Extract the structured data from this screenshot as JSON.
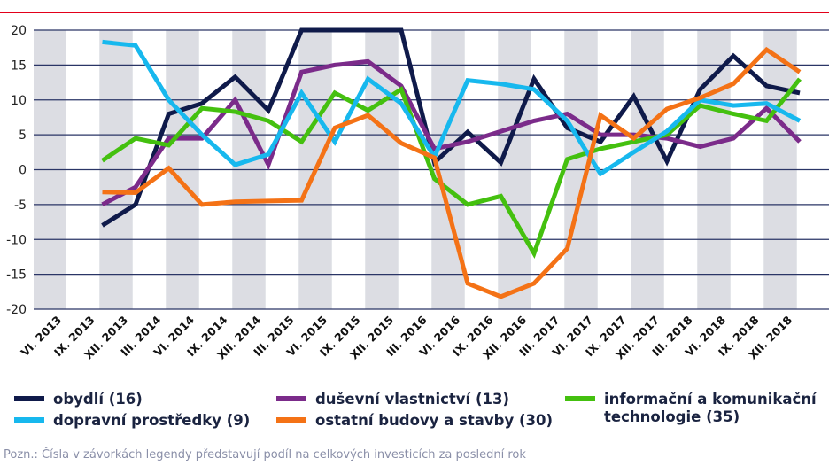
{
  "chart_data": {
    "type": "line",
    "categories": [
      "VI. 2013",
      "IX. 2013",
      "XII. 2013",
      "III. 2014",
      "VI. 2014",
      "IX. 2014",
      "XII. 2014",
      "III. 2015",
      "VI. 2015",
      "IX. 2015",
      "XII. 2015",
      "III. 2016",
      "VI. 2016",
      "IX. 2016",
      "XII. 2016",
      "III. 2017",
      "VI. 2017",
      "IX. 2017",
      "XII. 2017",
      "III. 2018",
      "VI. 2018",
      "IX. 2018",
      "XII. 2018"
    ],
    "yticks": [
      20,
      15,
      10,
      5,
      0,
      -5,
      -10,
      -15,
      -20
    ],
    "ylim": [
      -20,
      20
    ],
    "title": "",
    "xlabel": "",
    "ylabel": "",
    "series": [
      {
        "name": "obydlí (16)",
        "color": "#0f1a4a",
        "values": [
          null,
          -8,
          -5,
          8,
          9.5,
          13.3,
          8.5,
          20,
          20,
          20,
          20,
          1,
          5.4,
          1,
          13,
          6,
          4,
          10.5,
          1.2,
          11.5,
          16.3,
          12,
          11
        ]
      },
      {
        "name": "duševní vlastnictví (13)",
        "color": "#7b2b8a",
        "values": [
          null,
          -5,
          -2.5,
          4.5,
          4.5,
          10,
          0.7,
          14,
          15,
          15.5,
          12,
          3,
          4,
          5.5,
          7,
          8,
          5,
          5,
          4.5,
          3.3,
          4.5,
          8.8,
          4
        ]
      },
      {
        "name": "informační a komunikační technologie (35)",
        "color": "#44c00f",
        "values": [
          null,
          1.3,
          4.5,
          3.5,
          8.8,
          8.3,
          7,
          4,
          11,
          8.5,
          11.5,
          -1.3,
          -5,
          -3.8,
          -12,
          1.5,
          3,
          4,
          5,
          9.2,
          8,
          7,
          13
        ]
      },
      {
        "name": "dopravní prostředky (9)",
        "color": "#17b8ee",
        "values": [
          null,
          18.3,
          17.8,
          10,
          5,
          0.7,
          2.2,
          11,
          4,
          13,
          9.5,
          1.8,
          12.8,
          12.3,
          11.5,
          7,
          -0.6,
          2.5,
          5.5,
          10,
          9.2,
          9.5,
          7
        ]
      },
      {
        "name": "ostatní budovy a stavby (30)",
        "color": "#f47216",
        "values": [
          null,
          -3.2,
          -3.3,
          0.2,
          -5,
          -4.6,
          -4.5,
          -4.4,
          6,
          7.8,
          3.8,
          1.7,
          -16.3,
          -18.2,
          -16.3,
          -11.3,
          7.8,
          4.5,
          8.7,
          10.3,
          12.3,
          17.2,
          14
        ]
      }
    ],
    "grid": "horizontal lines with alternating vertical bands",
    "legend_position": "bottom"
  },
  "legend": {
    "obydli": "obydlí (16)",
    "dopravni": "dopravní prostředky (9)",
    "dusevni": "duševní vlastnictví (13)",
    "ostatni": "ostatní budovy a stavby (30)",
    "ikt_line1": "informační a komunikační",
    "ikt_line2": "technologie (35)"
  },
  "note": "Pozn.: Čísla v závorkách legendy představují podíl na celkových investicích za poslední rok"
}
